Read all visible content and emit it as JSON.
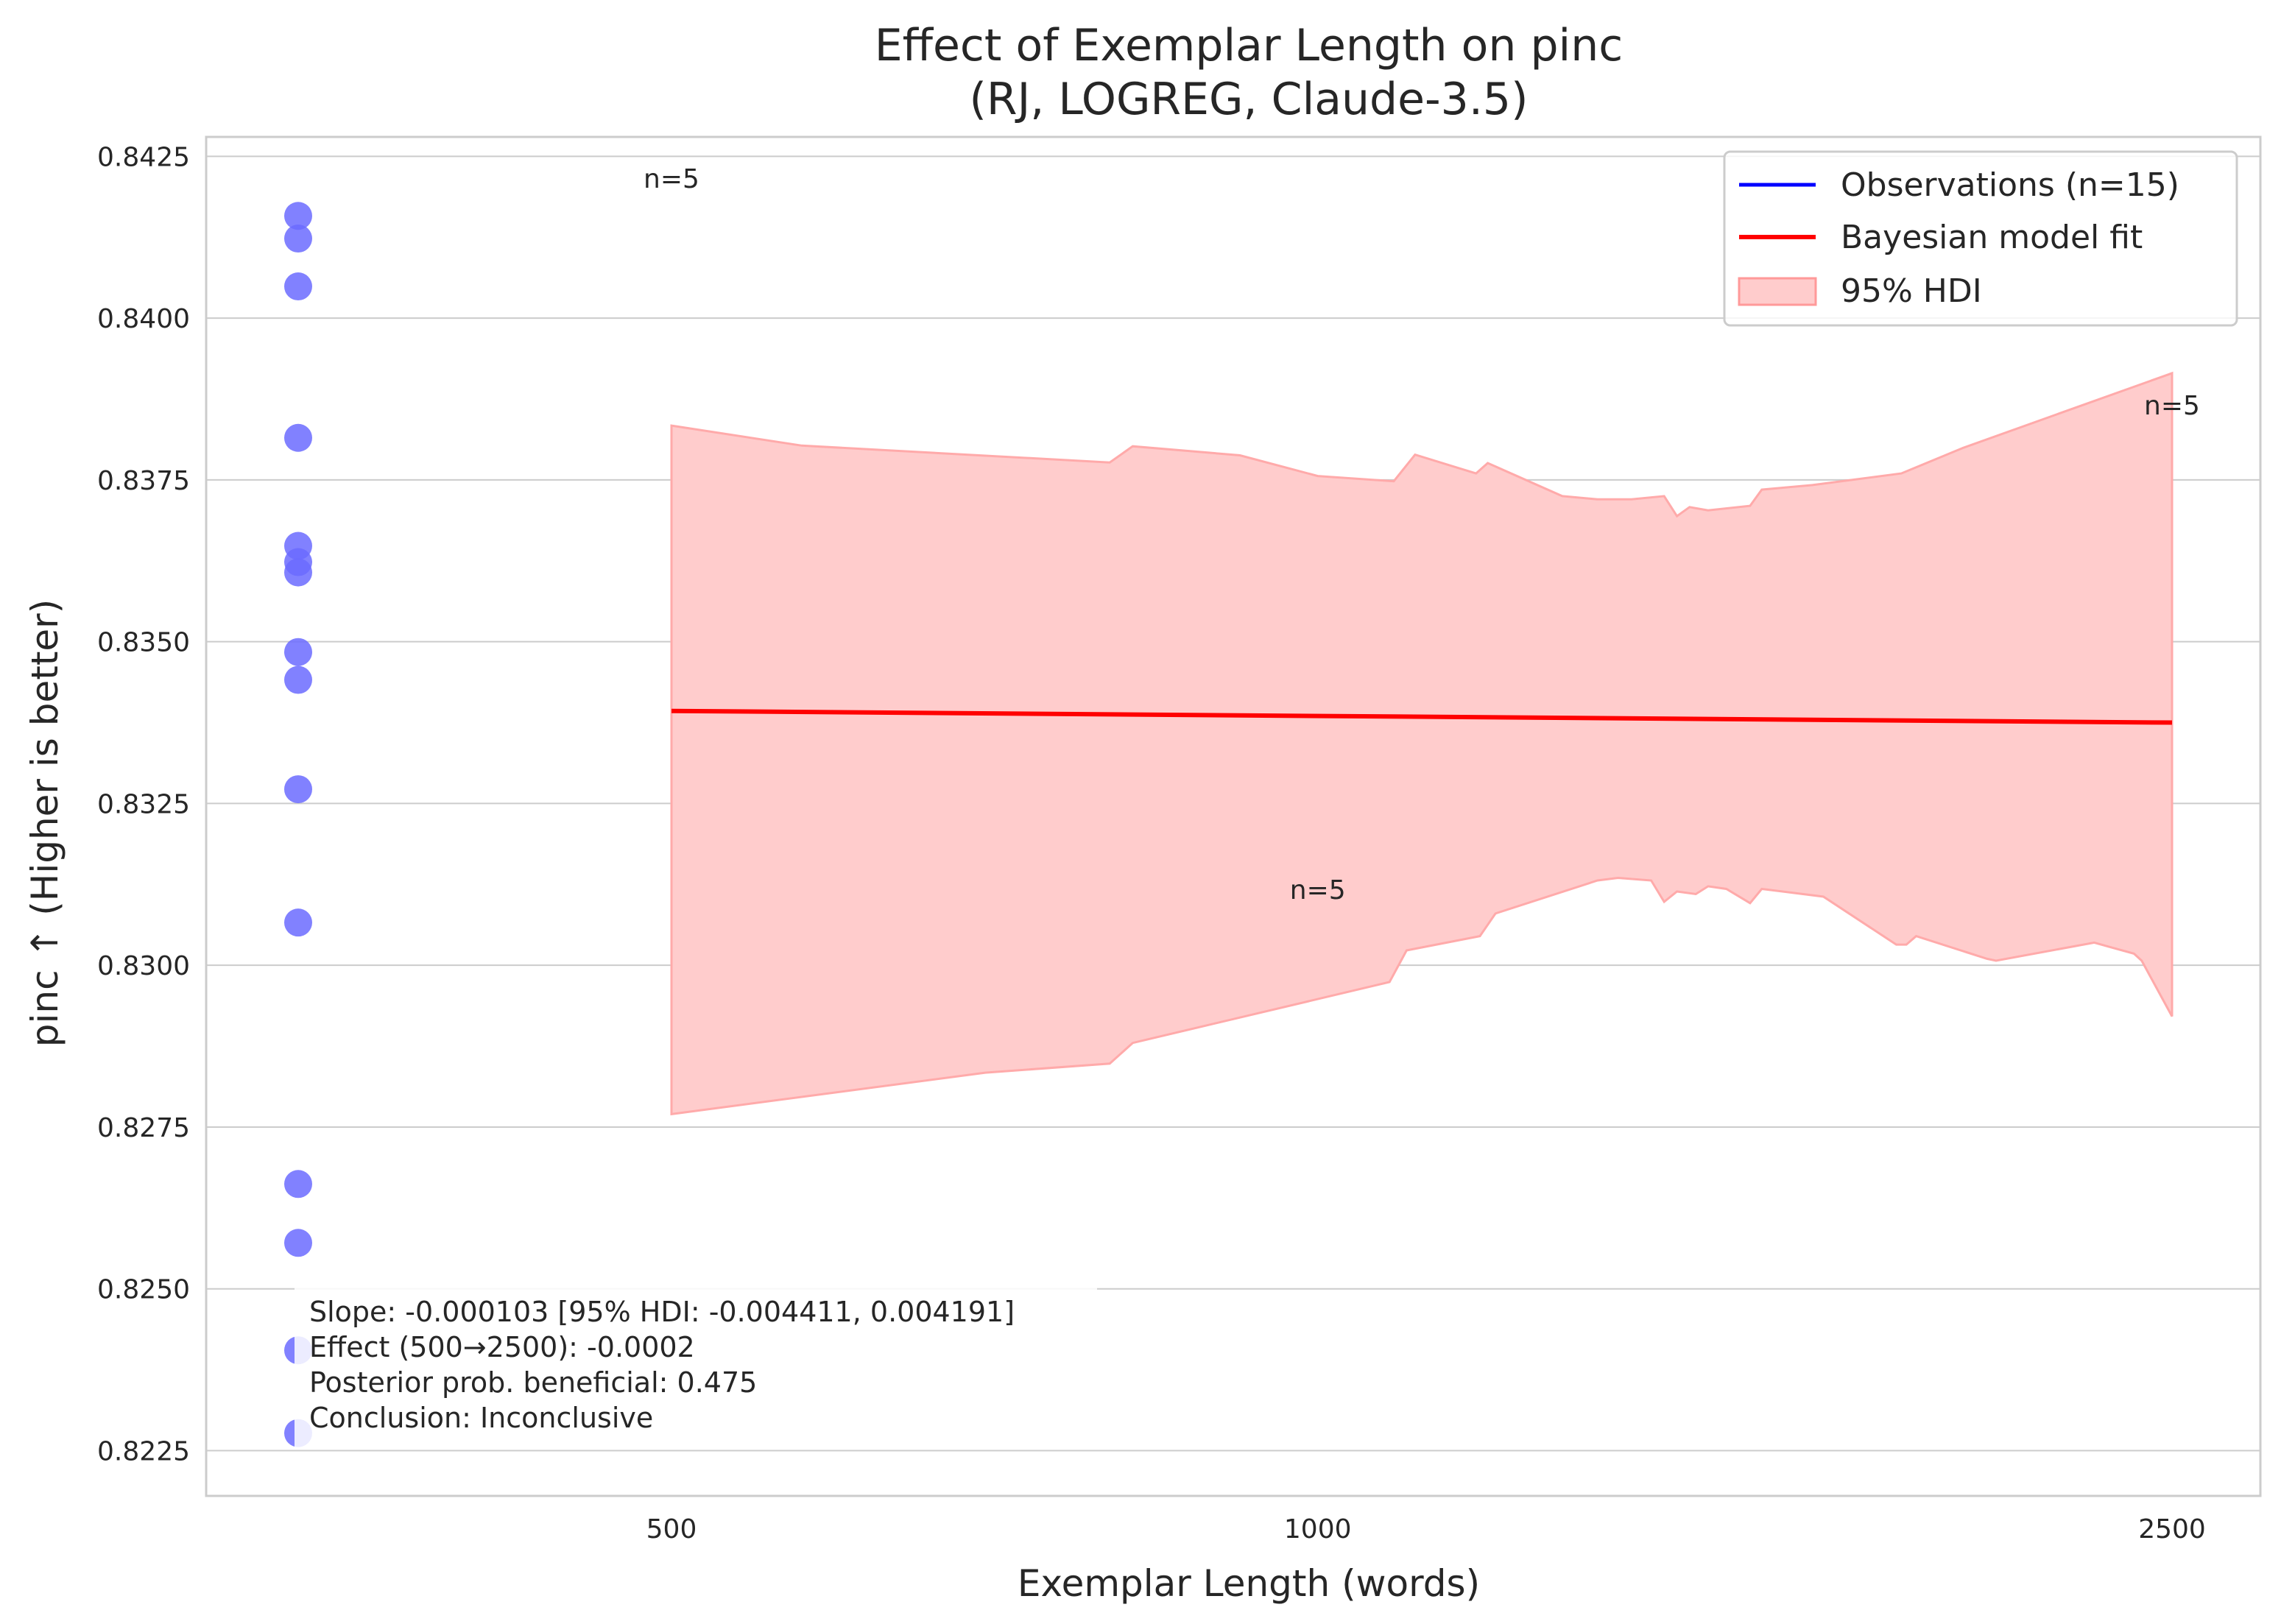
{
  "chart_data": {
    "type": "scatter",
    "title": "Effect of Exemplar Length on pinc",
    "subtitle": "(RJ, LOGREG, Claude-3.5)",
    "xlabel": "Exemplar Length (words)",
    "ylabel": "pinc ↑ (Higher is better)",
    "x_ticks": [
      500,
      1000,
      2500
    ],
    "x_tick_labels": [
      "500",
      "1000",
      "2500"
    ],
    "y_ticks": [
      0.8225,
      0.825,
      0.8275,
      0.83,
      0.8325,
      0.835,
      0.8375,
      0.84,
      0.8425
    ],
    "y_tick_labels": [
      "0.8225",
      "0.8250",
      "0.8275",
      "0.8300",
      "0.8325",
      "0.8350",
      "0.8375",
      "0.8400",
      "0.8425"
    ],
    "ylim": [
      0.8218,
      0.8428
    ],
    "grid": true,
    "legend": {
      "placement": "top-right",
      "entries": [
        {
          "label": "Observations (n=15)",
          "kind": "line",
          "color": "#0000ff"
        },
        {
          "label": "Bayesian model fit",
          "kind": "line",
          "color": "#ff0000"
        },
        {
          "label": "95% HDI",
          "kind": "patch",
          "color": "#ffcccc"
        }
      ]
    },
    "observations": {
      "name": "Observations (n=15)",
      "color": "#6b6bff",
      "points": [
        {
          "x": 0,
          "y": 0.84158
        },
        {
          "x": 0,
          "y": 0.84123
        },
        {
          "x": 0,
          "y": 0.84049
        },
        {
          "x": 0,
          "y": 0.83815
        },
        {
          "x": 0,
          "y": 0.83648
        },
        {
          "x": 0,
          "y": 0.83623
        },
        {
          "x": 0,
          "y": 0.83607
        },
        {
          "x": 0,
          "y": 0.83484
        },
        {
          "x": 0,
          "y": 0.83441
        },
        {
          "x": 0,
          "y": 0.83272
        },
        {
          "x": 0,
          "y": 0.83066
        },
        {
          "x": 0,
          "y": 0.82662
        },
        {
          "x": 0,
          "y": 0.82571
        },
        {
          "x": 0,
          "y": 0.82405
        },
        {
          "x": 0,
          "y": 0.82277
        }
      ]
    },
    "fit": {
      "name": "Bayesian model fit",
      "color": "#ff0000",
      "points": [
        {
          "x": 500,
          "y": 0.83393
        },
        {
          "x": 2500,
          "y": 0.83375
        }
      ]
    },
    "hdi": {
      "name": "95% HDI",
      "color": "#ffcccc",
      "upper": [
        [
          500,
          0.83834
        ],
        [
          575,
          0.83803
        ],
        [
          800,
          0.83777
        ],
        [
          820,
          0.83802
        ],
        [
          920,
          0.83788
        ],
        [
          1000,
          0.83756
        ],
        [
          1085,
          0.83748
        ],
        [
          1110,
          0.83789
        ],
        [
          1185,
          0.8376
        ],
        [
          1200,
          0.83776
        ],
        [
          1300,
          0.83725
        ],
        [
          1350,
          0.8372
        ],
        [
          1400,
          0.8372
        ],
        [
          1450,
          0.83725
        ],
        [
          1470,
          0.83694
        ],
        [
          1490,
          0.83708
        ],
        [
          1520,
          0.83703
        ],
        [
          1590,
          0.8371
        ],
        [
          1610,
          0.83735
        ],
        [
          1700,
          0.83742
        ],
        [
          1870,
          0.8376
        ],
        [
          2000,
          0.838
        ],
        [
          2500,
          0.83915
        ]
      ],
      "lower": [
        [
          500,
          0.8277
        ],
        [
          700,
          0.82834
        ],
        [
          800,
          0.82848
        ],
        [
          820,
          0.8288
        ],
        [
          1080,
          0.82974
        ],
        [
          1100,
          0.83023
        ],
        [
          1190,
          0.83045
        ],
        [
          1210,
          0.8308
        ],
        [
          1350,
          0.83131
        ],
        [
          1380,
          0.83135
        ],
        [
          1430,
          0.83131
        ],
        [
          1450,
          0.83098
        ],
        [
          1470,
          0.83114
        ],
        [
          1500,
          0.8311
        ],
        [
          1520,
          0.83122
        ],
        [
          1550,
          0.83118
        ],
        [
          1590,
          0.83096
        ],
        [
          1610,
          0.83118
        ],
        [
          1720,
          0.83106
        ],
        [
          1860,
          0.83032
        ],
        [
          1880,
          0.83032
        ],
        [
          1900,
          0.83045
        ],
        [
          2050,
          0.8301
        ],
        [
          2070,
          0.83007
        ],
        [
          2300,
          0.83035
        ],
        [
          2340,
          0.83028
        ],
        [
          2400,
          0.83018
        ],
        [
          2420,
          0.83007
        ],
        [
          2500,
          0.82921
        ]
      ]
    },
    "annotations": [
      {
        "text": "n=5",
        "x": 500,
        "y": 0.84215
      },
      {
        "text": "n=5",
        "x": 1000,
        "y": 0.83116
      },
      {
        "text": "n=5",
        "x": 2500,
        "y": 0.83865
      }
    ],
    "stats_box": [
      "Slope: -0.000103 [95% HDI: -0.004411, 0.004191]",
      "Effect (500→2500): -0.0002",
      "Posterior prob. beneficial: 0.475",
      "Conclusion: Inconclusive"
    ]
  }
}
